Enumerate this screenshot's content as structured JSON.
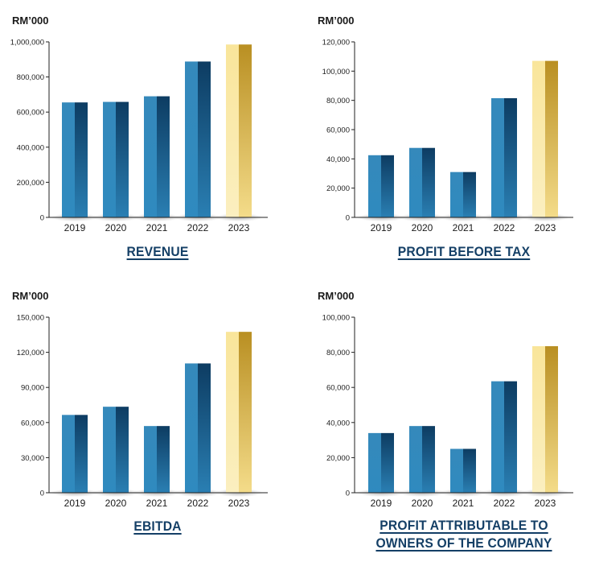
{
  "colors": {
    "blue_dark": "#0d3c62",
    "blue_light": "#3589bb",
    "gold_dark": "#b98f22",
    "gold_light": "#f9e59a",
    "caption": "#143f66",
    "axis": "#222222"
  },
  "chart_data": [
    {
      "type": "bar",
      "unit_label": "RM’000",
      "title": "REVENUE",
      "categories": [
        "2019",
        "2020",
        "2021",
        "2022",
        "2023"
      ],
      "values": [
        655000,
        658000,
        690000,
        888000,
        985000
      ],
      "highlight_index": 4,
      "ylim": [
        0,
        1000000
      ],
      "yticks": [
        0,
        200000,
        400000,
        600000,
        800000,
        1000000
      ],
      "ytick_labels": [
        "0",
        "200,000",
        "400,000",
        "600,000",
        "800,000",
        "1,000,000"
      ]
    },
    {
      "type": "bar",
      "unit_label": "RM’000",
      "title": "PROFIT BEFORE TAX",
      "categories": [
        "2019",
        "2020",
        "2021",
        "2022",
        "2023"
      ],
      "values": [
        42500,
        47500,
        31000,
        81500,
        107000
      ],
      "highlight_index": 4,
      "ylim": [
        0,
        120000
      ],
      "yticks": [
        0,
        20000,
        40000,
        60000,
        80000,
        100000,
        120000
      ],
      "ytick_labels": [
        "0",
        "20,000",
        "40,000",
        "60,000",
        "80,000",
        "100,000",
        "120,000"
      ]
    },
    {
      "type": "bar",
      "unit_label": "RM’000",
      "title": "EBITDA",
      "categories": [
        "2019",
        "2020",
        "2021",
        "2022",
        "2023"
      ],
      "values": [
        66500,
        73500,
        57000,
        110500,
        137500
      ],
      "highlight_index": 4,
      "ylim": [
        0,
        150000
      ],
      "yticks": [
        0,
        30000,
        60000,
        90000,
        120000,
        150000
      ],
      "ytick_labels": [
        "0",
        "30,000",
        "60,000",
        "90,000",
        "120,000",
        "150,000"
      ]
    },
    {
      "type": "bar",
      "unit_label": "RM’000",
      "title": "PROFIT ATTRIBUTABLE TO OWNERS OF THE COMPANY",
      "title_lines": [
        "PROFIT ATTRIBUTABLE TO",
        "OWNERS OF THE COMPANY"
      ],
      "categories": [
        "2019",
        "2020",
        "2021",
        "2022",
        "2023"
      ],
      "values": [
        34000,
        38000,
        25000,
        63500,
        83500
      ],
      "highlight_index": 4,
      "ylim": [
        0,
        100000
      ],
      "yticks": [
        0,
        20000,
        40000,
        60000,
        80000,
        100000
      ],
      "ytick_labels": [
        "0",
        "20,000",
        "40,000",
        "60,000",
        "80,000",
        "100,000"
      ]
    }
  ]
}
